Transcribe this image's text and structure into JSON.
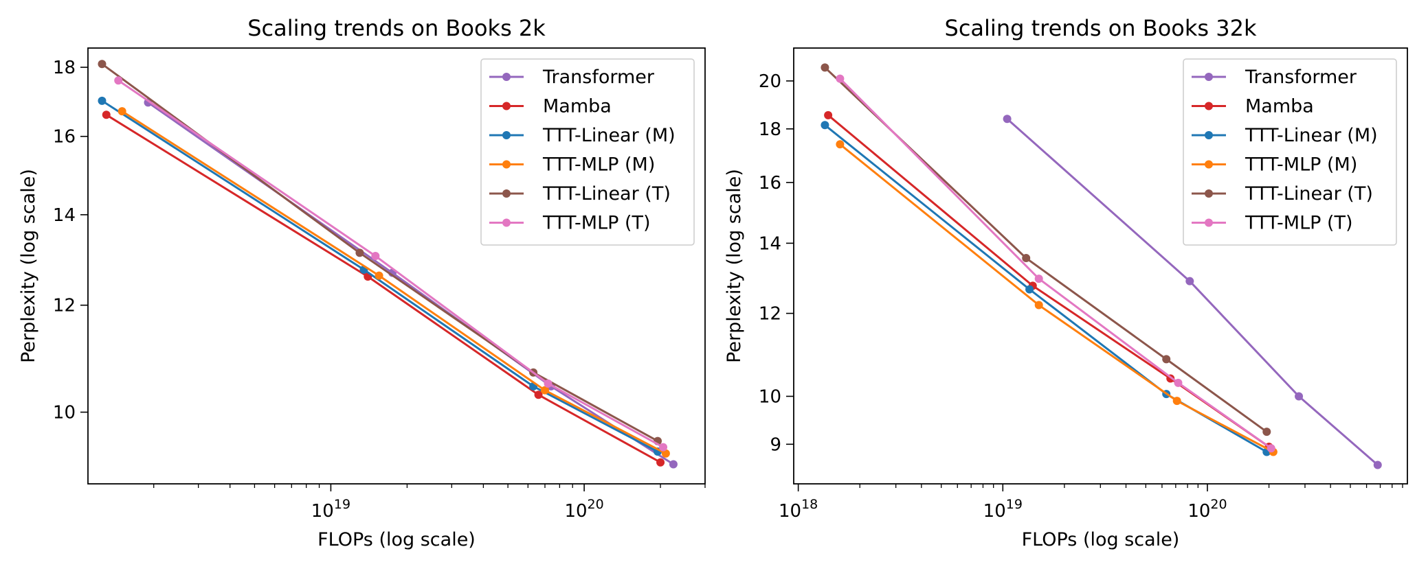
{
  "chart_data": [
    {
      "type": "line",
      "title": "Scaling trends on Books 2k",
      "xlabel": "FLOPs (log scale)",
      "ylabel": "Perplexity (log scale)",
      "xscale": "log",
      "yscale": "log",
      "xlim": [
        1.1e+18,
        3e+20
      ],
      "ylim": [
        8.85,
        18.6
      ],
      "xticks": [
        {
          "value": 1e+19,
          "base": "10",
          "exp": "19"
        },
        {
          "value": 1e+20,
          "base": "10",
          "exp": "20"
        }
      ],
      "yticks": [
        {
          "value": 10,
          "label": "10"
        },
        {
          "value": 12,
          "label": "12"
        },
        {
          "value": 14,
          "label": "14"
        },
        {
          "value": 16,
          "label": "16"
        },
        {
          "value": 18,
          "label": "18"
        }
      ],
      "grid": false,
      "legend_position": "top-right",
      "series": [
        {
          "name": "Transformer",
          "color": "#9467bd",
          "x": [
            1.9e+18,
            1.75e+19,
            7.4e+19,
            2.25e+20
          ],
          "y": [
            16.95,
            12.68,
            10.45,
            9.15
          ]
        },
        {
          "name": "Mamba",
          "color": "#d62728",
          "x": [
            1.3e+18,
            1.4e+19,
            6.6e+19,
            2e+20
          ],
          "y": [
            16.6,
            12.6,
            10.3,
            9.18
          ]
        },
        {
          "name": "TTT-Linear (M)",
          "color": "#1f77b4",
          "x": [
            1.25e+18,
            1.35e+19,
            6.3e+19,
            1.95e+20
          ],
          "y": [
            17.0,
            12.75,
            10.45,
            9.35
          ]
        },
        {
          "name": "TTT-MLP (M)",
          "color": "#ff7f0e",
          "x": [
            1.5e+18,
            1.55e+19,
            7e+19,
            2.1e+20
          ],
          "y": [
            16.7,
            12.62,
            10.38,
            9.32
          ]
        },
        {
          "name": "TTT-Linear (T)",
          "color": "#8c564b",
          "x": [
            1.25e+18,
            1.3e+19,
            6.3e+19,
            1.95e+20
          ],
          "y": [
            18.1,
            13.12,
            10.7,
            9.52
          ]
        },
        {
          "name": "TTT-MLP (T)",
          "color": "#e377c2",
          "x": [
            1.45e+18,
            1.5e+19,
            7.2e+19,
            2.05e+20
          ],
          "y": [
            17.6,
            13.05,
            10.5,
            9.42
          ]
        }
      ]
    },
    {
      "type": "line",
      "title": "Scaling trends on Books 32k",
      "xlabel": "FLOPs (log scale)",
      "ylabel": "Perplexity (log scale)",
      "xscale": "log",
      "yscale": "log",
      "xlim": [
        9.5e+17,
        9.5e+20
      ],
      "ylim": [
        8.25,
        21.5
      ],
      "xticks": [
        {
          "value": 1e+18,
          "base": "10",
          "exp": "18"
        },
        {
          "value": 1e+19,
          "base": "10",
          "exp": "19"
        },
        {
          "value": 1e+20,
          "base": "10",
          "exp": "20"
        }
      ],
      "yticks": [
        {
          "value": 9,
          "label": "9"
        },
        {
          "value": 10,
          "label": "10"
        },
        {
          "value": 12,
          "label": "12"
        },
        {
          "value": 14,
          "label": "14"
        },
        {
          "value": 16,
          "label": "16"
        },
        {
          "value": 18,
          "label": "18"
        },
        {
          "value": 20,
          "label": "20"
        }
      ],
      "grid": false,
      "legend_position": "top-right",
      "series": [
        {
          "name": "Transformer",
          "color": "#9467bd",
          "x": [
            1.05e+19,
            8.2e+19,
            2.8e+20,
            6.8e+20
          ],
          "y": [
            18.4,
            12.88,
            10.0,
            8.6
          ]
        },
        {
          "name": "Mamba",
          "color": "#d62728",
          "x": [
            1.4e+18,
            1.4e+19,
            6.6e+19,
            2e+20
          ],
          "y": [
            18.55,
            12.75,
            10.4,
            8.95
          ]
        },
        {
          "name": "TTT-Linear (M)",
          "color": "#1f77b4",
          "x": [
            1.35e+18,
            1.35e+19,
            6.3e+19,
            1.95e+20
          ],
          "y": [
            18.15,
            12.65,
            10.05,
            8.85
          ]
        },
        {
          "name": "TTT-MLP (M)",
          "color": "#ff7f0e",
          "x": [
            1.6e+18,
            1.5e+19,
            7.1e+19,
            2.1e+20
          ],
          "y": [
            17.4,
            12.22,
            9.9,
            8.85
          ]
        },
        {
          "name": "TTT-Linear (T)",
          "color": "#8c564b",
          "x": [
            1.35e+18,
            1.3e+19,
            6.3e+19,
            1.95e+20
          ],
          "y": [
            20.6,
            13.55,
            10.85,
            9.25
          ]
        },
        {
          "name": "TTT-MLP (T)",
          "color": "#e377c2",
          "x": [
            1.6e+18,
            1.5e+19,
            7.2e+19,
            2.05e+20
          ],
          "y": [
            20.1,
            12.95,
            10.3,
            8.92
          ]
        }
      ]
    }
  ]
}
